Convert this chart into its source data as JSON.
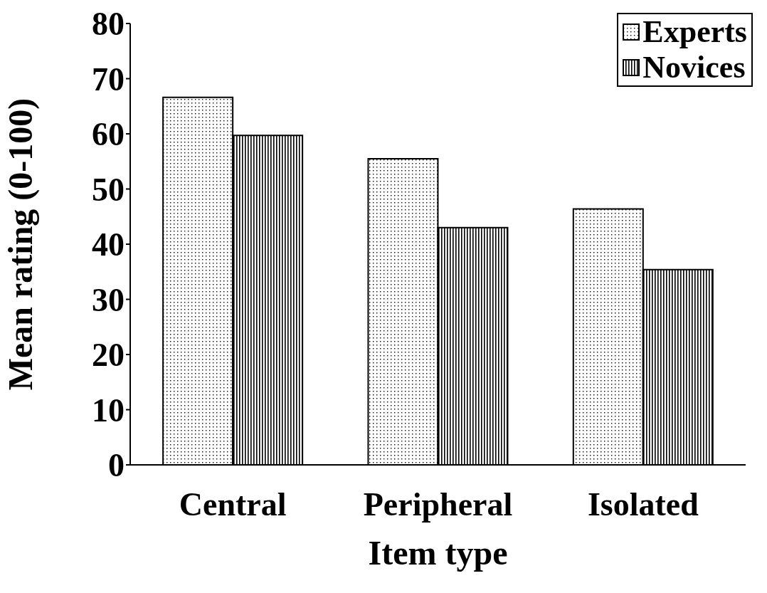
{
  "chart_data": {
    "type": "bar",
    "xlabel": "Item type",
    "ylabel": "Mean rating (0-100)",
    "categories": [
      "Central",
      "Peripheral",
      "Isolated"
    ],
    "series": [
      {
        "name": "Experts",
        "color": "#000000",
        "values": [
          66.6,
          55.5,
          46.4
        ]
      },
      {
        "name": "Novices",
        "color": "#000000",
        "values": [
          59.7,
          43.0,
          35.4
        ]
      }
    ],
    "ylim": [
      0,
      80
    ],
    "yticks": [
      0,
      10,
      20,
      30,
      40,
      50,
      60,
      70,
      80
    ],
    "grid": false,
    "legend": "top right"
  }
}
